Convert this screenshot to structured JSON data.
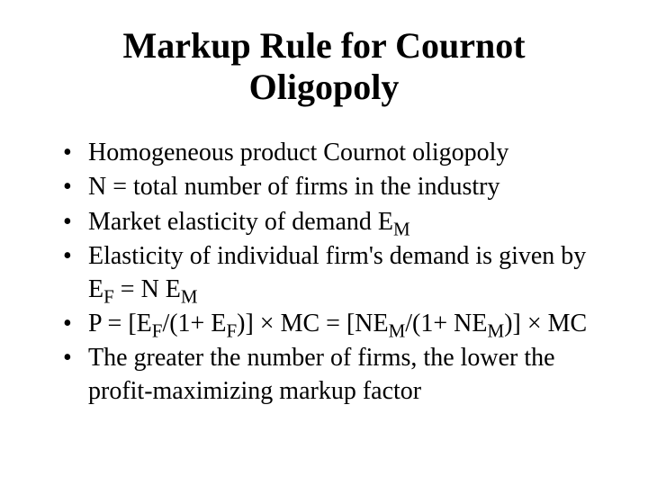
{
  "slide": {
    "title_line1": "Markup Rule for Cournot",
    "title_line2": "Oligopoly",
    "title_fontsize": 40,
    "body_fontsize": 28,
    "text_color": "#000000",
    "background_color": "#ffffff",
    "bullets": {
      "b0": "Homogeneous product Cournot oligopoly",
      "b1": "N = total number of firms in the industry",
      "b2_prefix": "Market elasticity of demand E",
      "b2_sub": "M",
      "b3_p1": "Elasticity of individual firm's demand is given by E",
      "b3_s1": "F",
      "b3_p2": " = N E",
      "b3_s2": "M",
      "b4_p1": "P = [E",
      "b4_s1": "F",
      "b4_p2": "/(1+ E",
      "b4_s2": "F",
      "b4_p3": ")] × MC = [NE",
      "b4_s3": "M",
      "b4_p4": "/(1+ NE",
      "b4_s4": "M",
      "b4_p5": ")] × MC",
      "b5": "The greater the number of firms, the lower the profit-maximizing markup factor"
    }
  }
}
